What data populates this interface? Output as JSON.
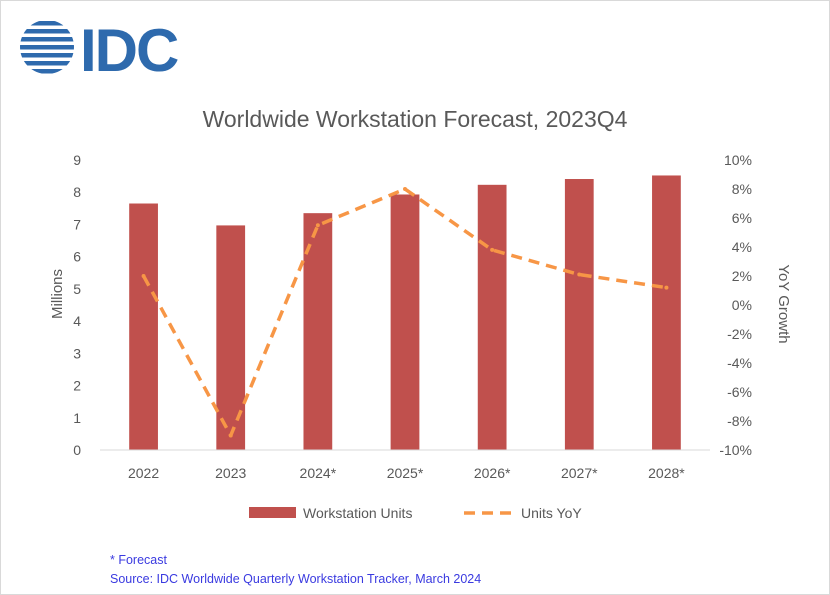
{
  "brand": {
    "logo_text": "IDC",
    "color": "#2e6aad"
  },
  "footnotes": {
    "forecast_note": "* Forecast",
    "source": "Source:  IDC Worldwide Quarterly Workstation Tracker, March 2024"
  },
  "chart_data": {
    "type": "bar",
    "title": "Worldwide Workstation Forecast, 2023Q4",
    "categories": [
      "2022",
      "2023",
      "2024*",
      "2025*",
      "2026*",
      "2027*",
      "2028*"
    ],
    "series": [
      {
        "name": "Workstation Units",
        "kind": "bar",
        "axis": "left",
        "color": "#c0504d",
        "values": [
          7.65,
          6.97,
          7.35,
          7.93,
          8.23,
          8.41,
          8.52
        ]
      },
      {
        "name": "Units YoY",
        "kind": "line",
        "axis": "right",
        "color": "#f79646",
        "dashed": true,
        "values": [
          2.0,
          -9.0,
          5.5,
          8.0,
          3.8,
          2.1,
          1.2
        ]
      }
    ],
    "ylabel": "Millions",
    "ylim": [
      0,
      9
    ],
    "yticks": [
      "0",
      "1",
      "2",
      "3",
      "4",
      "5",
      "6",
      "7",
      "8",
      "9"
    ],
    "y2label": "YoY Growth",
    "y2lim": [
      -10,
      10
    ],
    "y2ticks": [
      "-10%",
      "-8%",
      "-6%",
      "-4%",
      "-2%",
      "0%",
      "2%",
      "4%",
      "6%",
      "8%",
      "10%"
    ],
    "grid": false,
    "legend": "bottom"
  }
}
